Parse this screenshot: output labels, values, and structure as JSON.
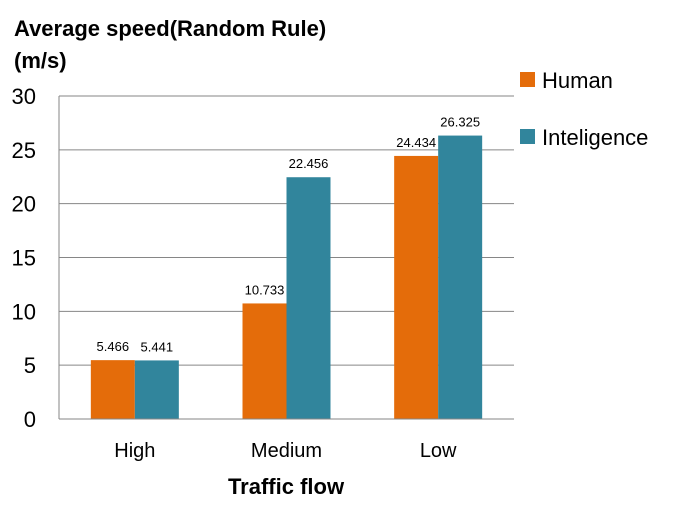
{
  "chart_data": {
    "type": "bar",
    "title_lines": [
      "Average speed(Random Rule)",
      "(m/s)"
    ],
    "xlabel": "Traffic flow",
    "ylabel": "",
    "categories": [
      "High",
      "Medium",
      "Low"
    ],
    "series": [
      {
        "name": "Human",
        "values": [
          5.466,
          10.733,
          24.434
        ],
        "color": "#E46C0A"
      },
      {
        "name": "Inteligence",
        "values": [
          5.441,
          22.456,
          26.325
        ],
        "color": "#31859C"
      }
    ],
    "data_labels": [
      [
        "5.466",
        "10.733",
        "24.434"
      ],
      [
        "5.441",
        "22.456",
        "26.325"
      ]
    ],
    "ylim": [
      0,
      30
    ],
    "yticks": [
      0,
      5,
      10,
      15,
      20,
      25,
      30
    ],
    "ytick_labels": [
      "0",
      "5",
      "10",
      "15",
      "20",
      "25",
      "30"
    ],
    "grid": true,
    "legend_position": "right"
  }
}
